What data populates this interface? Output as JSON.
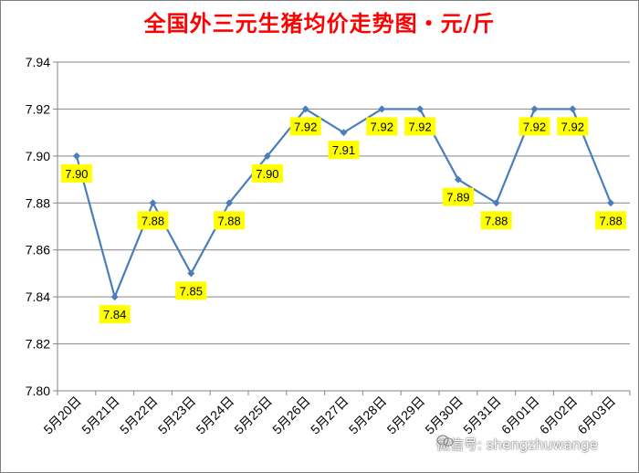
{
  "chart_data": {
    "type": "line",
    "title": "全国外三元生猪均价走势图・元/斤",
    "categories": [
      "5月20日",
      "5月21日",
      "5月22日",
      "5月23日",
      "5月24日",
      "5月25日",
      "5月26日",
      "5月27日",
      "5月28日",
      "5月29日",
      "5月30日",
      "5月31日",
      "6月01日",
      "6月02日",
      "6月03日"
    ],
    "series": [
      {
        "values": [
          7.9,
          7.84,
          7.88,
          7.85,
          7.88,
          7.9,
          7.92,
          7.91,
          7.92,
          7.92,
          7.89,
          7.88,
          7.92,
          7.92,
          7.88
        ]
      }
    ],
    "data_labels": [
      "7.90",
      "7.84",
      "7.88",
      "7.85",
      "7.88",
      "7.90",
      "7.92",
      "7.91",
      "7.92",
      "7.92",
      "7.89",
      "7.88",
      "7.92",
      "7.92",
      "7.88"
    ],
    "y_ticks": [
      "7.80",
      "7.82",
      "7.84",
      "7.86",
      "7.88",
      "7.90",
      "7.92",
      "7.94"
    ],
    "ylim": [
      7.8,
      7.94
    ],
    "grid": true,
    "line_color": "#4a7ebb",
    "label_bg_color": "#ffff00"
  },
  "watermark": "微信号: shengzhuwange"
}
